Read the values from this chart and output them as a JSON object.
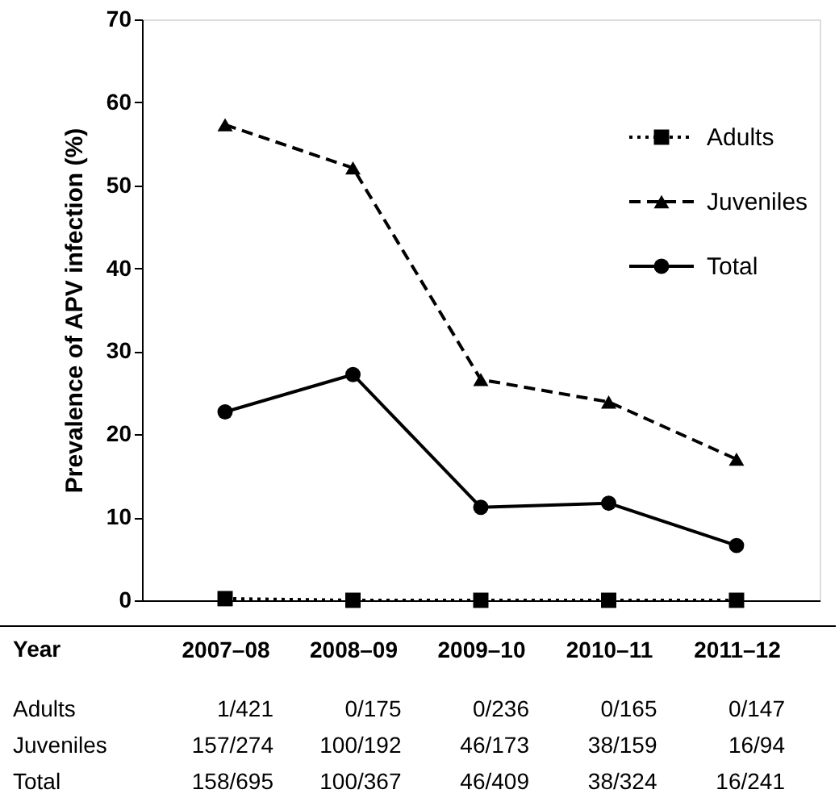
{
  "chart_data": {
    "type": "line",
    "ylabel": "Prevalence of APV infection (%)",
    "xlabel": "Year",
    "categories": [
      "2007–08",
      "2008–09",
      "2009–10",
      "2010–11",
      "2011–12"
    ],
    "series": [
      {
        "name": "Adults",
        "color": "#000000",
        "marker": "square",
        "line_style": "dotted",
        "values": [
          0.2,
          0,
          0,
          0,
          0
        ]
      },
      {
        "name": "Juveniles",
        "color": "#000000",
        "marker": "triangle",
        "line_style": "dashed",
        "values": [
          57.3,
          52.1,
          26.6,
          23.9,
          17.0
        ]
      },
      {
        "name": "Total",
        "color": "#000000",
        "marker": "circle",
        "line_style": "solid",
        "values": [
          22.7,
          27.2,
          11.2,
          11.7,
          6.6
        ]
      }
    ],
    "ylim": [
      0,
      70
    ],
    "yticks": [
      0,
      10,
      20,
      30,
      40,
      50,
      60,
      70
    ],
    "grid": false,
    "legend": "top right",
    "annotations": [
      "Adults",
      "1/421",
      "0/175",
      "0/236",
      "0/165",
      "0/147",
      "Juveniles",
      "157/274",
      "100/192",
      "46/173",
      "38/159",
      "16/94",
      "Total",
      "158/695",
      "100/367",
      "46/409",
      "38/324",
      "16/241"
    ]
  }
}
